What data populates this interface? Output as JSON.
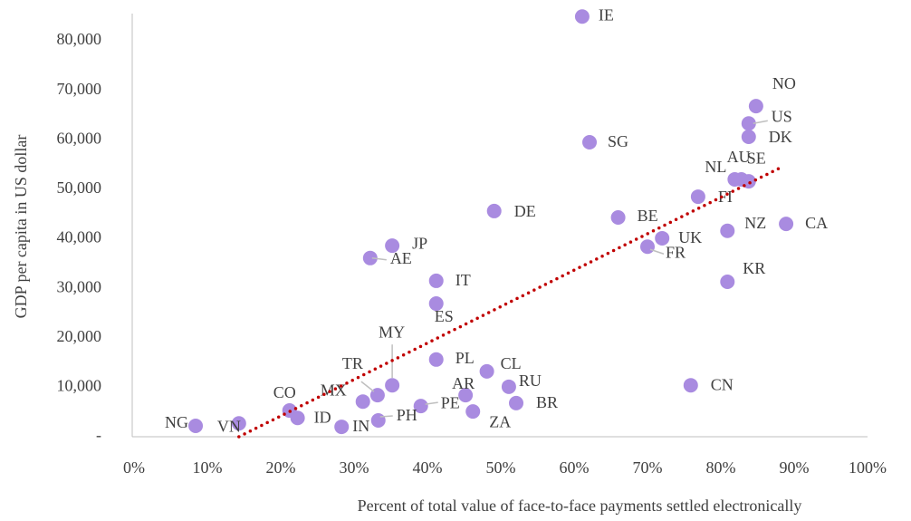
{
  "chart_data": {
    "type": "scatter",
    "x_label": "Percent of total value of face-to-face payments settled electronically",
    "y_label": "GDP per capita in US dollar",
    "color": "#a98be0",
    "xlim": [
      0,
      100
    ],
    "ylim": [
      0,
      80000
    ],
    "xticks": [
      {
        "value": 0,
        "label": "0%"
      },
      {
        "value": 10,
        "label": "10%"
      },
      {
        "value": 20,
        "label": "20%"
      },
      {
        "value": 30,
        "label": "30%"
      },
      {
        "value": 40,
        "label": "40%"
      },
      {
        "value": 50,
        "label": "50%"
      },
      {
        "value": 60,
        "label": "60%"
      },
      {
        "value": 70,
        "label": "70%"
      },
      {
        "value": 80,
        "label": "80%"
      },
      {
        "value": 90,
        "label": "90%"
      },
      {
        "value": 100,
        "label": "100%"
      }
    ],
    "yticks": [
      {
        "value": 0,
        "label": "-"
      },
      {
        "value": 10000,
        "label": "10,000"
      },
      {
        "value": 20000,
        "label": "20,000"
      },
      {
        "value": 30000,
        "label": "30,000"
      },
      {
        "value": 40000,
        "label": "40,000"
      },
      {
        "value": 50000,
        "label": "50,000"
      },
      {
        "value": 60000,
        "label": "60,000"
      },
      {
        "value": 70000,
        "label": "70,000"
      },
      {
        "value": 80000,
        "label": "80,000"
      }
    ],
    "labels": [
      "IE",
      "NO",
      "US",
      "DK",
      "SG",
      "NL",
      "AU",
      "SE",
      "FI",
      "DE",
      "BE",
      "NZ",
      "CA",
      "UK",
      "FR",
      "JP",
      "AE",
      "IT",
      "KR",
      "ES",
      "PL",
      "CL",
      "MY",
      "CN",
      "RU",
      "TR",
      "AR",
      "MX",
      "BR",
      "PE",
      "CO",
      "ZA",
      "ID",
      "PH",
      "NG",
      "VN",
      "IN"
    ],
    "x": [
      61.1,
      84.8,
      83.8,
      83.8,
      62.1,
      81.9,
      82.8,
      83.8,
      76.9,
      49.1,
      66.0,
      80.9,
      88.9,
      72.0,
      70.0,
      35.2,
      32.2,
      41.2,
      80.9,
      41.2,
      41.2,
      48.1,
      35.2,
      75.9,
      51.1,
      33.2,
      45.2,
      31.2,
      52.1,
      39.1,
      21.2,
      46.2,
      22.3,
      33.3,
      8.4,
      14.3,
      28.3
    ],
    "y": [
      84900,
      66800,
      63300,
      60600,
      59500,
      52000,
      52000,
      51600,
      48500,
      45600,
      44300,
      41600,
      43000,
      40100,
      38400,
      38600,
      36100,
      31500,
      31300,
      26900,
      15600,
      13200,
      10400,
      10400,
      10100,
      8400,
      8400,
      7100,
      6800,
      6200,
      5300,
      5100,
      3800,
      3300,
      2200,
      2700,
      2000
    ],
    "trendline": {
      "color": "#c00000",
      "x": [
        14.3,
        87.9
      ],
      "y": [
        0,
        54200
      ]
    }
  }
}
